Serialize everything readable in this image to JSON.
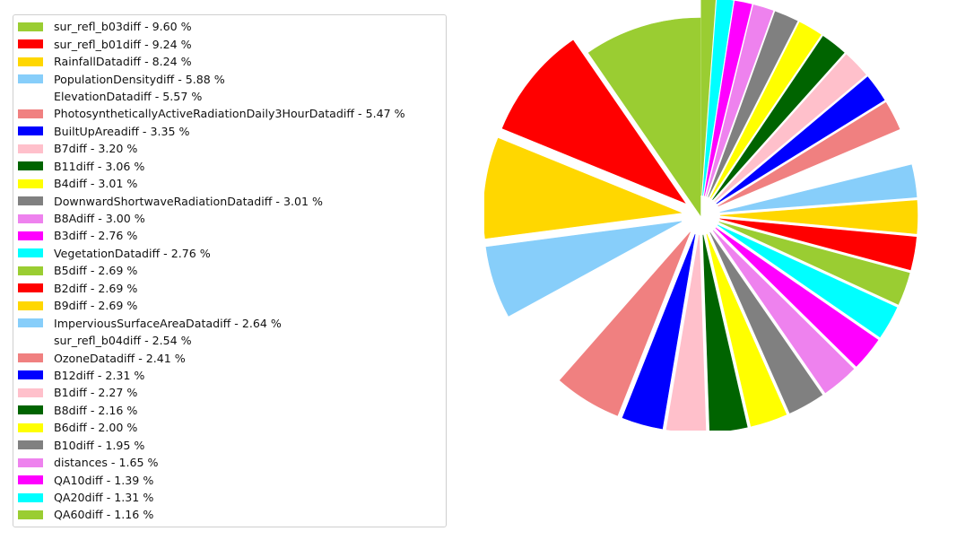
{
  "chart_data": {
    "type": "pie",
    "title": "",
    "legend_placement": "left",
    "exploded": true,
    "start_angle_deg": 90,
    "direction": "counterclockwise",
    "slices": [
      {
        "label": "sur_refl_b03diff - 9.60 %",
        "name": "sur_refl_b03diff",
        "value": 9.6,
        "color": "#9acd32"
      },
      {
        "label": "sur_refl_b01diff - 9.24 %",
        "name": "sur_refl_b01diff",
        "value": 9.24,
        "color": "#ff0000"
      },
      {
        "label": "RainfallDatadiff - 8.24 %",
        "name": "RainfallDatadiff",
        "value": 8.24,
        "color": "#ffd700"
      },
      {
        "label": "PopulationDensitydiff - 5.88 %",
        "name": "PopulationDensitydiff",
        "value": 5.88,
        "color": "#87cefa"
      },
      {
        "label": "ElevationDatadiff - 5.57 %",
        "name": "ElevationDatadiff",
        "value": 5.57,
        "color": "#ffffff"
      },
      {
        "label": "PhotosyntheticallyActiveRadiationDaily3HourDatadiff - 5.47 %",
        "name": "PhotosyntheticallyActiveRadiationDaily3HourDatadiff",
        "value": 5.47,
        "color": "#f08080"
      },
      {
        "label": "BuiltUpAreadiff - 3.35 %",
        "name": "BuiltUpAreadiff",
        "value": 3.35,
        "color": "#0000ff"
      },
      {
        "label": "B7diff - 3.20 %",
        "name": "B7diff",
        "value": 3.2,
        "color": "#ffc0cb"
      },
      {
        "label": "B11diff - 3.06 %",
        "name": "B11diff",
        "value": 3.06,
        "color": "#006400"
      },
      {
        "label": "B4diff - 3.01 %",
        "name": "B4diff",
        "value": 3.01,
        "color": "#ffff00"
      },
      {
        "label": "DownwardShortwaveRadiationDatadiff - 3.01 %",
        "name": "DownwardShortwaveRadiationDatadiff",
        "value": 3.01,
        "color": "#808080"
      },
      {
        "label": "B8Adiff - 3.00 %",
        "name": "B8Adiff",
        "value": 3.0,
        "color": "#ee82ee"
      },
      {
        "label": "B3diff - 2.76 %",
        "name": "B3diff",
        "value": 2.76,
        "color": "#ff00ff"
      },
      {
        "label": "VegetationDatadiff - 2.76 %",
        "name": "VegetationDatadiff",
        "value": 2.76,
        "color": "#00ffff"
      },
      {
        "label": "B5diff - 2.69 %",
        "name": "B5diff",
        "value": 2.69,
        "color": "#9acd32"
      },
      {
        "label": "B2diff - 2.69 %",
        "name": "B2diff",
        "value": 2.69,
        "color": "#ff0000"
      },
      {
        "label": "B9diff - 2.69 %",
        "name": "B9diff",
        "value": 2.69,
        "color": "#ffd700"
      },
      {
        "label": "ImperviousSurfaceAreaDatadiff - 2.64 %",
        "name": "ImperviousSurfaceAreaDatadiff",
        "value": 2.64,
        "color": "#87cefa"
      },
      {
        "label": "sur_refl_b04diff - 2.54 %",
        "name": "sur_refl_b04diff",
        "value": 2.54,
        "color": "#ffffff"
      },
      {
        "label": "OzoneDatadiff - 2.41 %",
        "name": "OzoneDatadiff",
        "value": 2.41,
        "color": "#f08080"
      },
      {
        "label": "B12diff - 2.31 %",
        "name": "B12diff",
        "value": 2.31,
        "color": "#0000ff"
      },
      {
        "label": "B1diff - 2.27 %",
        "name": "B1diff",
        "value": 2.27,
        "color": "#ffc0cb"
      },
      {
        "label": "B8diff - 2.16 %",
        "name": "B8diff",
        "value": 2.16,
        "color": "#006400"
      },
      {
        "label": "B6diff - 2.00 %",
        "name": "B6diff",
        "value": 2.0,
        "color": "#ffff00"
      },
      {
        "label": "B10diff - 1.95 %",
        "name": "B10diff",
        "value": 1.95,
        "color": "#808080"
      },
      {
        "label": "distances - 1.65 %",
        "name": "distances",
        "value": 1.65,
        "color": "#ee82ee"
      },
      {
        "label": "QA10diff - 1.39 %",
        "name": "QA10diff",
        "value": 1.39,
        "color": "#ff00ff"
      },
      {
        "label": "QA20diff - 1.31 %",
        "name": "QA20diff",
        "value": 1.31,
        "color": "#00ffff"
      },
      {
        "label": "QA60diff - 1.16 %",
        "name": "QA60diff",
        "value": 1.16,
        "color": "#9acd32"
      }
    ]
  }
}
